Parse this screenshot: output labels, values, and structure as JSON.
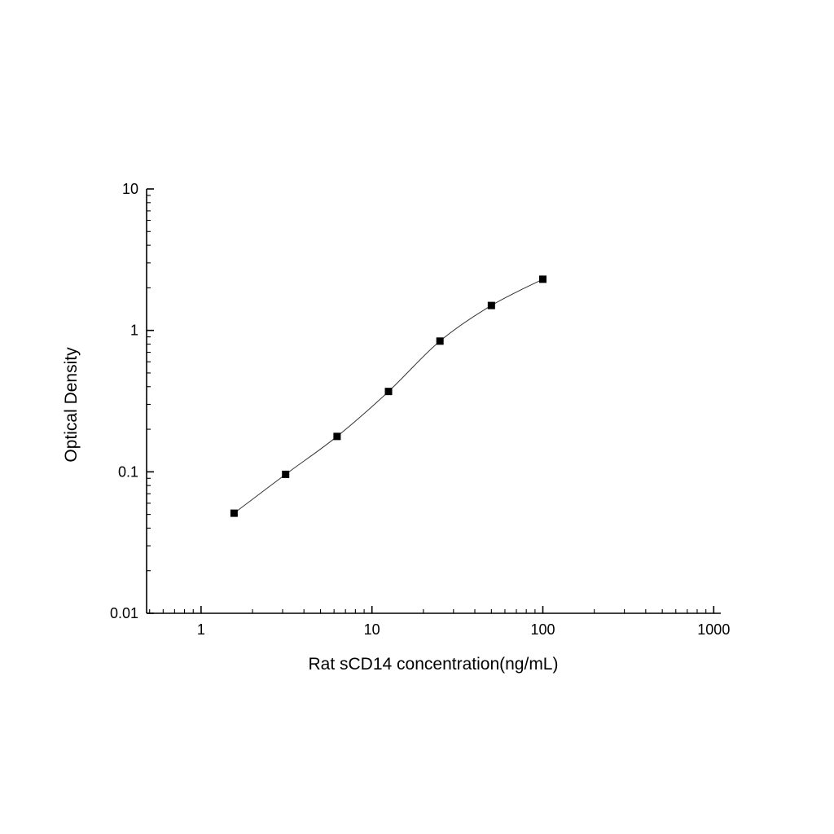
{
  "chart_data": {
    "type": "scatter",
    "title": "",
    "xlabel": "Rat sCD14 concentration(ng/mL)",
    "ylabel": "Optical Density",
    "xscale": "log",
    "yscale": "log",
    "xlim": [
      0.48,
      1100
    ],
    "ylim": [
      0.01,
      10
    ],
    "x_major_ticks": [
      1,
      10,
      100,
      1000
    ],
    "x_tick_labels": [
      "1",
      "10",
      "100",
      "1000"
    ],
    "y_major_ticks": [
      0.01,
      0.1,
      1,
      10
    ],
    "y_tick_labels": [
      "0.01",
      "0.1",
      "1",
      "10"
    ],
    "x": [
      1.56,
      3.125,
      6.25,
      12.5,
      25,
      50,
      100
    ],
    "y": [
      0.051,
      0.096,
      0.178,
      0.37,
      0.84,
      1.5,
      2.3
    ],
    "marker": "filled-square",
    "marker_color": "#000000",
    "line_color": "#333333",
    "axis_color": "#000000",
    "grid": false,
    "legend": null
  }
}
